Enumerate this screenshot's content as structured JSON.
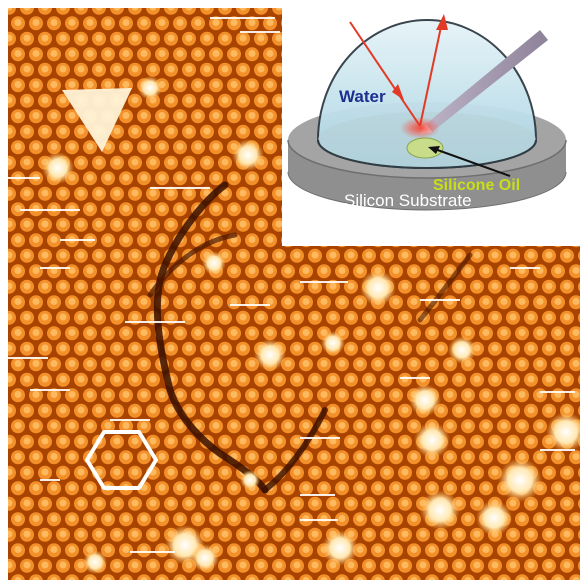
{
  "inset": {
    "water_label": "Water",
    "oil_label": "Silicone Oil",
    "substrate_label": "Silicon Substrate"
  },
  "colors": {
    "scan_background": "#b44a00",
    "particle_bright": "#ffdf9e",
    "water_label": "#1c2f8f",
    "oil_label": "#c8de19",
    "laser": "#e23a27",
    "substrate_top": "#a4a4a4",
    "substrate_side": "#8f8f8f"
  }
}
